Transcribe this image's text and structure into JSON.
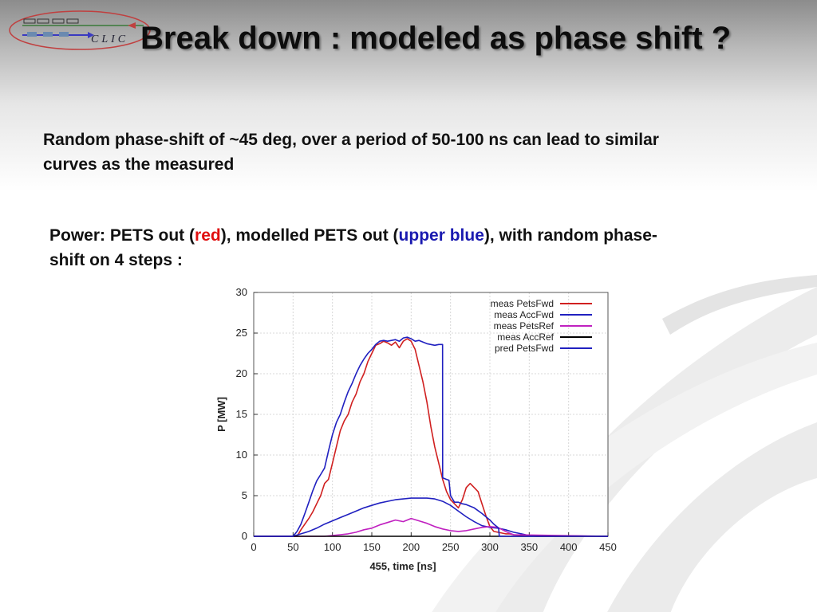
{
  "slide": {
    "title": "Break down : modeled as phase shift ?",
    "logo_text": "CLIC",
    "logo_icon": "clic-accelerator-logo-icon",
    "paragraph1": "Random phase-shift of ~45 deg, over a period of 50-100 ns can lead to similar curves as the measured",
    "paragraph2": {
      "part1": "Power: PETS out (",
      "red_word": "red",
      "part2": "), modelled PETS out (",
      "blue_word": "upper blue",
      "part3": "), with random phase-shift on 4 steps :"
    }
  },
  "chart_data": {
    "type": "line",
    "xlabel": "455,    time [ns]",
    "ylabel": "P [MW]",
    "xlim": [
      0,
      450
    ],
    "ylim": [
      0,
      30
    ],
    "xticks": [
      0,
      50,
      100,
      150,
      200,
      250,
      300,
      350,
      400,
      450
    ],
    "yticks": [
      0,
      5,
      10,
      15,
      20,
      25,
      30
    ],
    "grid": true,
    "legend_position": "top-right",
    "series": [
      {
        "name": "meas PetsFwd",
        "color": "#d02020",
        "x": [
          0,
          55,
          60,
          65,
          70,
          75,
          80,
          85,
          90,
          95,
          100,
          105,
          110,
          115,
          120,
          125,
          130,
          135,
          140,
          145,
          150,
          155,
          160,
          165,
          170,
          175,
          180,
          185,
          190,
          195,
          200,
          205,
          210,
          215,
          220,
          225,
          230,
          235,
          240,
          245,
          250,
          255,
          260,
          265,
          270,
          275,
          280,
          285,
          290,
          295,
          300,
          305,
          310,
          315,
          320,
          325,
          330,
          340,
          350,
          360,
          380,
          450
        ],
        "y": [
          0,
          0,
          0.8,
          1.5,
          2.2,
          3.0,
          4.0,
          5.0,
          6.5,
          7.0,
          9.0,
          11.0,
          13.0,
          14.2,
          15.0,
          16.5,
          17.5,
          19.0,
          20.0,
          21.5,
          22.5,
          23.5,
          23.7,
          24.0,
          23.8,
          23.5,
          23.9,
          23.2,
          24.0,
          24.3,
          24.0,
          23.0,
          21.0,
          19.0,
          16.5,
          13.5,
          11.0,
          9.0,
          7.0,
          5.5,
          4.5,
          4.0,
          3.5,
          4.5,
          6.0,
          6.5,
          6.0,
          5.5,
          4.0,
          2.5,
          1.2,
          0.6,
          0.5,
          0.4,
          0.3,
          0.3,
          0.2,
          0.1,
          0.05,
          0,
          0,
          0
        ]
      },
      {
        "name": "meas AccFwd",
        "color": "#2020c0",
        "x": [
          0,
          50,
          60,
          70,
          80,
          90,
          100,
          110,
          120,
          130,
          140,
          150,
          160,
          170,
          180,
          190,
          200,
          210,
          220,
          230,
          240,
          250,
          260,
          270,
          280,
          290,
          300,
          310,
          320,
          330,
          340,
          350,
          450
        ],
        "y": [
          0,
          0,
          0.3,
          0.6,
          1.0,
          1.5,
          1.9,
          2.3,
          2.7,
          3.1,
          3.5,
          3.8,
          4.1,
          4.3,
          4.5,
          4.6,
          4.7,
          4.7,
          4.7,
          4.6,
          4.3,
          3.8,
          3.1,
          2.4,
          1.8,
          1.3,
          1.1,
          1.0,
          0.8,
          0.5,
          0.3,
          0.1,
          0
        ]
      },
      {
        "name": "meas PetsRef",
        "color": "#c020c0",
        "x": [
          0,
          90,
          100,
          110,
          120,
          130,
          140,
          150,
          160,
          170,
          180,
          190,
          200,
          210,
          220,
          230,
          240,
          250,
          260,
          270,
          280,
          290,
          300,
          310,
          320,
          330,
          450
        ],
        "y": [
          0,
          0,
          0.1,
          0.2,
          0.3,
          0.5,
          0.8,
          1.0,
          1.4,
          1.7,
          2.0,
          1.8,
          2.2,
          1.9,
          1.6,
          1.2,
          0.9,
          0.7,
          0.6,
          0.7,
          0.9,
          1.1,
          1.2,
          1.1,
          0.6,
          0.2,
          0
        ]
      },
      {
        "name": "meas AccRef",
        "color": "#000000",
        "x": [
          0,
          450
        ],
        "y": [
          0,
          0
        ]
      },
      {
        "name": "pred PetsFwd",
        "color": "#2020c0",
        "x": [
          0,
          50,
          55,
          60,
          65,
          70,
          75,
          80,
          85,
          90,
          95,
          100,
          105,
          110,
          115,
          120,
          125,
          130,
          135,
          140,
          145,
          150,
          155,
          160,
          165,
          170,
          175,
          180,
          185,
          190,
          195,
          200,
          205,
          210,
          215,
          220,
          225,
          230,
          235,
          239.9,
          240,
          245,
          248,
          250,
          255,
          260,
          265,
          270,
          280,
          290,
          300,
          305,
          310,
          311,
          312,
          450
        ],
        "y": [
          0,
          0,
          0.6,
          1.5,
          2.8,
          4.2,
          5.6,
          6.8,
          7.6,
          8.4,
          10.5,
          12.5,
          14.0,
          15.0,
          16.5,
          17.8,
          18.8,
          20.0,
          21.0,
          21.8,
          22.5,
          23.0,
          23.6,
          24.0,
          24.1,
          24.0,
          24.1,
          24.2,
          24.0,
          24.4,
          24.5,
          24.3,
          24.0,
          24.1,
          23.9,
          23.7,
          23.6,
          23.5,
          23.6,
          23.6,
          7.2,
          7.0,
          6.9,
          5.0,
          4.2,
          4.2,
          4.0,
          3.9,
          3.5,
          2.8,
          2.0,
          1.5,
          1.1,
          1.0,
          0,
          0
        ]
      }
    ]
  }
}
